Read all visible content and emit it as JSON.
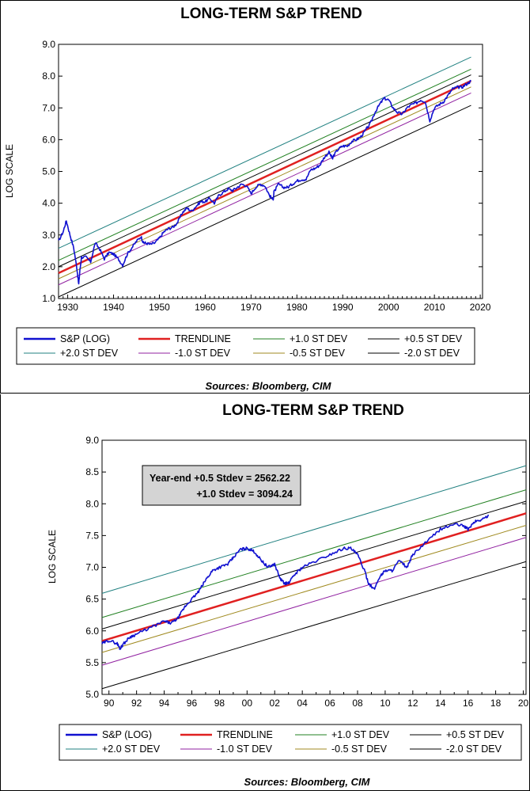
{
  "chart_data": [
    {
      "type": "line",
      "title": "LONG-TERM S&P TREND",
      "ylabel": "LOG SCALE",
      "source": "Sources:  Bloomberg, CIM",
      "xlim": [
        1928,
        2020.5
      ],
      "ylim": [
        1.0,
        9.0
      ],
      "x_ticks": [
        1930,
        1940,
        1950,
        1960,
        1970,
        1980,
        1990,
        2000,
        2010,
        2020
      ],
      "x_tick_labels": [
        "1930",
        "1940",
        "1950",
        "1960",
        "1970",
        "1980",
        "1990",
        "2000",
        "2010",
        "2020"
      ],
      "y_ticks": [
        1.0,
        2.0,
        3.0,
        4.0,
        5.0,
        6.0,
        7.0,
        8.0,
        9.0
      ],
      "y_tick_labels": [
        "1.0",
        "2.0",
        "3.0",
        "4.0",
        "5.0",
        "6.0",
        "7.0",
        "8.0",
        "9.0"
      ],
      "grid": false,
      "legend_position": "bottom",
      "trend_lines": {
        "x_range": [
          1928,
          2018
        ],
        "series": [
          {
            "name": "TRENDLINE",
            "color": "#e02020",
            "width": 2.5,
            "values": [
              1.8,
              7.85
            ]
          },
          {
            "name": "+1.0 ST DEV",
            "color": "#208020",
            "values": [
              2.2,
              8.22
            ]
          },
          {
            "name": "+0.5 ST DEV",
            "color": "#000000",
            "values": [
              2.0,
              8.04
            ]
          },
          {
            "name": "+2.0 ST DEV",
            "color": "#208080",
            "values": [
              2.58,
              8.6
            ]
          },
          {
            "name": "-1.0 ST DEV",
            "color": "#9020a0",
            "values": [
              1.43,
              7.47
            ]
          },
          {
            "name": "-0.5 ST DEV",
            "color": "#a08a20",
            "values": [
              1.62,
              7.66
            ]
          },
          {
            "name": "-2.0 ST DEV",
            "color": "#000000",
            "values": [
              1.05,
              7.08
            ]
          }
        ]
      },
      "sp_series": {
        "name": "S&P (LOG)",
        "color": "#1010d0",
        "x": [
          1928,
          1929,
          1929.7,
          1930.5,
          1931.3,
          1932,
          1932.4,
          1932.6,
          1933,
          1934,
          1935,
          1936,
          1937,
          1938,
          1939,
          1940,
          1941,
          1942,
          1943,
          1944,
          1945,
          1946,
          1946.5,
          1947,
          1948,
          1949,
          1950,
          1951,
          1952,
          1953,
          1954,
          1955,
          1956,
          1957,
          1958,
          1959,
          1960,
          1961,
          1962,
          1963,
          1964,
          1965,
          1966,
          1967,
          1968,
          1969,
          1970,
          1971,
          1972,
          1973,
          1974,
          1974.8,
          1975,
          1976,
          1977,
          1978,
          1979,
          1980,
          1981,
          1982,
          1983,
          1984,
          1985,
          1986,
          1987,
          1987.8,
          1988,
          1989,
          1990,
          1991,
          1992,
          1993,
          1994,
          1995,
          1996,
          1997,
          1998,
          1999,
          2000,
          2001,
          2002,
          2003,
          2004,
          2005,
          2006,
          2007,
          2008,
          2009,
          2010,
          2011,
          2012,
          2013,
          2014,
          2015,
          2016,
          2017,
          2018
        ],
        "values": [
          2.8,
          3.1,
          3.45,
          3.0,
          2.6,
          1.95,
          1.45,
          1.8,
          2.3,
          2.3,
          2.15,
          2.75,
          2.55,
          2.25,
          2.45,
          2.4,
          2.25,
          2.05,
          2.4,
          2.6,
          2.8,
          2.95,
          2.75,
          2.75,
          2.7,
          2.75,
          2.9,
          3.1,
          3.2,
          3.25,
          3.4,
          3.7,
          3.85,
          3.75,
          3.9,
          4.05,
          4.05,
          4.15,
          4.0,
          4.25,
          4.35,
          4.45,
          4.4,
          4.5,
          4.6,
          4.55,
          4.3,
          4.5,
          4.6,
          4.55,
          4.25,
          4.1,
          4.35,
          4.6,
          4.5,
          4.5,
          4.6,
          4.7,
          4.75,
          4.75,
          5.05,
          5.1,
          5.2,
          5.45,
          5.6,
          5.4,
          5.5,
          5.7,
          5.8,
          5.8,
          5.95,
          6.0,
          6.1,
          6.3,
          6.5,
          6.85,
          7.1,
          7.3,
          7.25,
          7.0,
          6.85,
          6.8,
          7.0,
          7.1,
          7.15,
          7.25,
          7.2,
          6.6,
          7.0,
          7.1,
          7.2,
          7.4,
          7.6,
          7.65,
          7.65,
          7.75,
          7.85
        ]
      },
      "legend": [
        {
          "label": "S&P (LOG)",
          "color": "#1010d0"
        },
        {
          "label": "TRENDLINE",
          "color": "#e02020"
        },
        {
          "label": "+1.0 ST DEV",
          "color": "#208020"
        },
        {
          "label": "+0.5 ST DEV",
          "color": "#000000"
        },
        {
          "label": "+2.0 ST DEV",
          "color": "#208080"
        },
        {
          "label": "-1.0 ST DEV",
          "color": "#9020a0"
        },
        {
          "label": "-0.5 ST DEV",
          "color": "#a08a20"
        },
        {
          "label": "-2.0 ST DEV",
          "color": "#000000"
        }
      ]
    },
    {
      "type": "line",
      "title": "LONG-TERM S&P TREND",
      "ylabel": "LOG SCALE",
      "source": "Sources:  Bloomberg, CIM",
      "xlim": [
        1989.5,
        2020.2
      ],
      "ylim": [
        5.0,
        9.0
      ],
      "x_ticks": [
        1990,
        1992,
        1994,
        1996,
        1998,
        2000,
        2002,
        2004,
        2006,
        2008,
        2010,
        2012,
        2014,
        2016,
        2018,
        2020
      ],
      "x_tick_labels": [
        "90",
        "92",
        "94",
        "96",
        "98",
        "00",
        "02",
        "04",
        "06",
        "08",
        "10",
        "12",
        "14",
        "16",
        "18",
        "20"
      ],
      "y_ticks": [
        5.0,
        5.5,
        6.0,
        6.5,
        7.0,
        7.5,
        8.0,
        8.5,
        9.0
      ],
      "y_tick_labels": [
        "5.0",
        "5.5",
        "6.0",
        "6.5",
        "7.0",
        "7.5",
        "8.0",
        "8.5",
        "9.0"
      ],
      "grid": false,
      "legend_position": "bottom",
      "annotation": [
        "Year-end +0.5 Stdev = 2562.22",
        "+1.0 Stdev = 3094.24"
      ],
      "trend_lines": {
        "x_range": [
          1989.5,
          2020.2
        ],
        "series": [
          {
            "name": "TRENDLINE",
            "color": "#e02020",
            "width": 2.5,
            "values": [
              5.84,
              7.85
            ]
          },
          {
            "name": "+1.0 ST DEV",
            "color": "#208020",
            "values": [
              6.21,
              8.22
            ]
          },
          {
            "name": "+0.5 ST DEV",
            "color": "#000000",
            "values": [
              6.03,
              8.04
            ]
          },
          {
            "name": "+2.0 ST DEV",
            "color": "#208080",
            "values": [
              6.59,
              8.6
            ]
          },
          {
            "name": "-1.0 ST DEV",
            "color": "#9020a0",
            "values": [
              5.46,
              7.47
            ]
          },
          {
            "name": "-0.5 ST DEV",
            "color": "#a08a20",
            "values": [
              5.66,
              7.66
            ]
          },
          {
            "name": "-2.0 ST DEV",
            "color": "#000000",
            "values": [
              5.09,
              7.09
            ]
          }
        ]
      },
      "sp_series": {
        "name": "S&P (LOG)",
        "color": "#1010d0",
        "x": [
          1989.5,
          1990.0,
          1990.6,
          1990.8,
          1991.0,
          1991.5,
          1992.0,
          1993.0,
          1994.0,
          1994.5,
          1995.0,
          1995.5,
          1996.0,
          1996.5,
          1997.0,
          1997.5,
          1998.0,
          1998.6,
          1999.0,
          1999.5,
          2000.0,
          2000.5,
          2001.0,
          2001.5,
          2002.0,
          2002.4,
          2002.7,
          2003.0,
          2003.5,
          2004.0,
          2005.0,
          2006.0,
          2007.0,
          2007.5,
          2008.0,
          2008.5,
          2008.8,
          2009.2,
          2009.6,
          2010.0,
          2010.5,
          2011.0,
          2011.6,
          2012.0,
          2013.0,
          2014.0,
          2015.0,
          2015.7,
          2016.0,
          2016.5,
          2017.0,
          2017.5
        ],
        "values": [
          5.8,
          5.85,
          5.8,
          5.72,
          5.78,
          5.9,
          5.95,
          6.05,
          6.15,
          6.12,
          6.2,
          6.38,
          6.5,
          6.62,
          6.8,
          6.95,
          7.0,
          7.05,
          7.15,
          7.28,
          7.3,
          7.25,
          7.12,
          7.0,
          7.05,
          6.82,
          6.75,
          6.75,
          6.9,
          7.0,
          7.1,
          7.2,
          7.3,
          7.3,
          7.2,
          6.95,
          6.75,
          6.65,
          6.85,
          6.95,
          6.95,
          7.1,
          7.0,
          7.2,
          7.4,
          7.6,
          7.68,
          7.65,
          7.6,
          7.72,
          7.75,
          7.82
        ]
      },
      "legend": [
        {
          "label": "S&P (LOG)",
          "color": "#1010d0"
        },
        {
          "label": "TRENDLINE",
          "color": "#e02020"
        },
        {
          "label": "+1.0 ST DEV",
          "color": "#208020"
        },
        {
          "label": "+0.5 ST DEV",
          "color": "#000000"
        },
        {
          "label": "+2.0 ST DEV",
          "color": "#208080"
        },
        {
          "label": "-1.0 ST DEV",
          "color": "#9020a0"
        },
        {
          "label": "-0.5 ST DEV",
          "color": "#a08a20"
        },
        {
          "label": "-2.0 ST DEV",
          "color": "#000000"
        }
      ]
    }
  ]
}
